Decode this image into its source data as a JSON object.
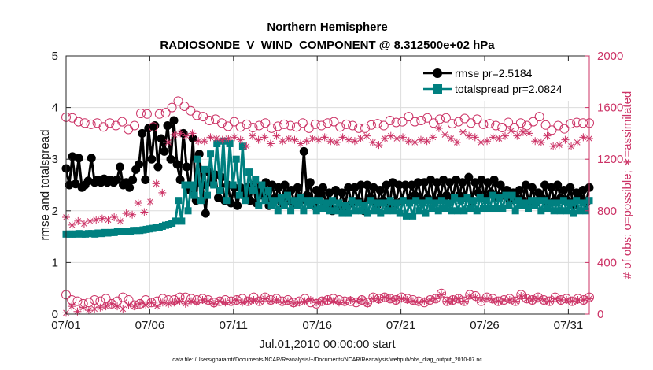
{
  "chart_data": {
    "type": "line",
    "title": "Northern Hemisphere",
    "subtitle": "RADIOSONDE_V_WIND_COMPONENT @ 8.312500e+02 hPa",
    "xlabel": "Jul.01,2010 00:00:00 start",
    "ylabel": "rmse and totalspread",
    "y2label": "# of obs: o=possible; ∗=assimilated",
    "footnote": "data file: /Users/gharamti/Documents/NCAR/Reanalysis/~/Documents/NCAR/Reanalysis/webpub/obs_diag_output_2010-07.nc",
    "xlim": [
      1,
      32.25
    ],
    "ylim": [
      0,
      5
    ],
    "y2lim": [
      0,
      2000
    ],
    "x_ticks": [
      1,
      6,
      11,
      16,
      21,
      26,
      31
    ],
    "x_tick_labels": [
      "07/01",
      "07/06",
      "07/11",
      "07/16",
      "07/21",
      "07/26",
      "07/31"
    ],
    "y_ticks": [
      "0",
      "1",
      "2",
      "3",
      "4",
      "5"
    ],
    "y2_ticks": [
      "0",
      "400",
      "800",
      "1200",
      "1600",
      "2000"
    ],
    "grid": true,
    "legend_location": "top-right",
    "series": [
      {
        "name": "rmse pr=2.5184",
        "axis": "left",
        "color": "#000000",
        "marker": "filled-circle",
        "values": [
          2.82,
          2.5,
          3.05,
          2.52,
          3.02,
          2.45,
          2.5,
          2.58,
          3.02,
          2.55,
          2.6,
          2.55,
          2.62,
          2.55,
          2.6,
          2.55,
          2.6,
          2.85,
          2.5,
          2.55,
          2.45,
          2.6,
          2.8,
          2.9,
          3.5,
          2.6,
          3.6,
          3.0,
          3.65,
          2.85,
          3.4,
          3.15,
          3.65,
          3.0,
          3.75,
          2.9,
          2.6,
          3.5,
          2.85,
          2.4,
          3.4,
          2.2,
          3.1,
          2.5,
          1.95,
          2.75,
          2.55,
          2.7,
          2.25,
          2.65,
          2.2,
          2.5,
          2.15,
          2.45,
          2.1,
          2.45,
          2.3,
          2.45,
          2.2,
          2.5,
          2.15,
          2.45,
          2.3,
          2.55,
          2.1,
          2.5,
          2.25,
          2.45,
          2.15,
          2.5,
          2.2,
          2.4,
          2.15,
          2.45,
          2.2,
          3.15,
          2.3,
          2.55,
          2.1,
          2.4,
          2.3,
          2.45,
          2.1,
          2.35,
          2.0,
          2.4,
          2.05,
          2.35,
          2.1,
          2.45,
          2.15,
          2.45,
          2.2,
          2.5,
          2.0,
          2.5,
          2.25,
          2.45,
          2.1,
          2.4,
          2.2,
          2.5,
          2.1,
          2.55,
          2.15,
          2.5,
          2.2,
          2.5,
          2.2,
          2.5,
          2.3,
          2.55,
          2.2,
          2.55,
          2.25,
          2.6,
          2.2,
          2.55,
          2.25,
          2.6,
          2.3,
          2.55,
          2.25,
          2.6,
          2.3,
          2.55,
          2.25,
          2.65,
          2.2,
          2.55,
          2.35,
          2.6,
          2.25,
          2.55,
          2.35,
          2.6,
          2.25,
          2.5,
          2.3,
          2.4,
          2.2,
          2.35,
          2.25,
          2.4,
          2.2,
          2.5,
          2.1,
          2.45,
          2.15,
          2.35,
          2.25,
          2.5,
          2.15,
          2.45,
          2.2,
          2.5,
          2.25,
          2.4,
          2.2,
          2.45,
          2.1,
          2.35,
          2.25,
          2.4,
          2.15,
          2.45
        ]
      },
      {
        "name": "totalspread pr=2.0824",
        "axis": "left",
        "color": "#008080",
        "marker": "filled-square",
        "values": [
          1.55,
          1.55,
          1.55,
          1.55,
          1.56,
          1.55,
          1.55,
          1.56,
          1.56,
          1.55,
          1.57,
          1.56,
          1.58,
          1.57,
          1.58,
          1.58,
          1.6,
          1.6,
          1.6,
          1.6,
          1.6,
          1.62,
          1.62,
          1.62,
          1.63,
          1.64,
          1.65,
          1.66,
          1.67,
          1.68,
          1.7,
          1.72,
          1.73,
          1.76,
          1.8,
          2.2,
          1.8,
          2.5,
          2.0,
          2.5,
          2.3,
          3.0,
          2.2,
          2.8,
          2.3,
          3.1,
          2.5,
          3.3,
          2.4,
          3.35,
          2.2,
          3.3,
          2.5,
          3.0,
          2.3,
          3.25,
          2.2,
          2.75,
          2.4,
          2.6,
          2.1,
          2.5,
          2.2,
          2.4,
          2.1,
          2.2,
          2.0,
          2.25,
          2.1,
          2.3,
          2.0,
          2.2,
          2.1,
          2.25,
          2.0,
          2.2,
          2.1,
          2.2,
          2.0,
          2.2,
          2.05,
          2.15,
          2.0,
          2.2,
          2.0,
          2.15,
          1.95,
          2.1,
          1.95,
          2.2,
          2.0,
          2.15,
          2.0,
          2.1,
          1.95,
          2.2,
          2.0,
          2.15,
          1.95,
          2.15,
          2.0,
          2.2,
          2.0,
          2.15,
          1.95,
          2.2,
          1.9,
          2.15,
          1.9,
          2.2,
          2.0,
          2.15,
          1.95,
          2.2,
          2.05,
          2.15,
          2.0,
          2.2,
          2.05,
          2.15,
          2.0,
          2.25,
          2.0,
          2.2,
          2.0,
          2.25,
          2.05,
          2.2,
          2.0,
          2.25,
          2.05,
          2.2,
          2.05,
          2.3,
          2.05,
          2.25,
          2.05,
          2.3,
          2.1,
          2.3,
          2.0,
          2.2,
          2.1,
          2.15,
          2.05,
          2.2,
          2.1,
          2.2,
          2.0,
          2.2,
          2.05,
          2.15,
          2.0,
          2.15,
          2.0,
          2.2,
          2.0,
          2.15,
          1.95,
          2.2,
          2.0,
          2.15,
          2.0,
          2.2
        ]
      },
      {
        "name": "possible (upper)",
        "axis": "right",
        "color": "#cc3366",
        "marker": "open-circle",
        "values": [
          1525,
          1520,
          1490,
          1480,
          1470,
          1480,
          1450,
          1480,
          1460,
          1490,
          1430,
          1460,
          1555,
          1550,
          1450,
          1550,
          1560,
          1600,
          1650,
          1610,
          1575,
          1540,
          1530,
          1500,
          1510,
          1480,
          1455,
          1490,
          1450,
          1470,
          1445,
          1460,
          1480,
          1440,
          1455,
          1470,
          1460,
          1450,
          1480,
          1440,
          1470,
          1460,
          1480,
          1490,
          1450,
          1470,
          1460,
          1440,
          1440,
          1465,
          1475,
          1460,
          1500,
          1485,
          1490,
          1530,
          1490,
          1500,
          1520,
          1480,
          1510,
          1520,
          1475,
          1490,
          1515,
          1480,
          1510,
          1470,
          1475,
          1460,
          1445,
          1485,
          1445,
          1480,
          1460,
          1490,
          1530,
          1465,
          1425,
          1460,
          1435,
          1475,
          1485,
          1480,
          1480
        ]
      },
      {
        "name": "assimilated (upper)",
        "axis": "right",
        "color": "#cc3366",
        "marker": "asterisk",
        "values": [
          750,
          690,
          720,
          700,
          720,
          730,
          740,
          730,
          750,
          720,
          780,
          770,
          860,
          790,
          870,
          1010,
          940,
          1330,
          1390,
          1400,
          1380,
          1400,
          1340,
          1340,
          1370,
          1360,
          1350,
          1360,
          1370,
          1350,
          1300,
          1380,
          1350,
          1370,
          1320,
          1380,
          1340,
          1360,
          1350,
          1320,
          1340,
          1360,
          1350,
          1370,
          1340,
          1330,
          1370,
          1350,
          1340,
          1360,
          1380,
          1330,
          1310,
          1360,
          1380,
          1360,
          1370,
          1340,
          1330,
          1350,
          1340,
          1370,
          1440,
          1390,
          1360,
          1330,
          1410,
          1380,
          1370,
          1330,
          1340,
          1370,
          1360,
          1380,
          1420,
          1380,
          1410,
          1400,
          1340,
          1330,
          1380,
          1300,
          1310,
          1350,
          1300,
          1330,
          1370,
          1360
        ]
      },
      {
        "name": "possible (lower)",
        "axis": "right",
        "color": "#cc3366",
        "marker": "open-circle",
        "values": [
          150,
          110,
          100,
          80,
          90,
          110,
          100,
          120,
          80,
          100,
          130,
          110,
          70,
          80,
          110,
          90,
          100,
          120,
          110,
          110,
          130,
          130,
          120,
          110,
          120,
          110,
          90,
          100,
          110,
          100,
          110,
          120,
          100,
          130,
          100,
          130,
          110,
          120,
          100,
          110,
          90,
          100,
          120,
          90,
          80,
          100,
          110,
          120,
          110,
          100,
          100,
          90,
          110,
          90,
          130,
          120,
          130,
          120,
          110,
          130,
          120,
          110,
          100,
          90,
          110,
          120,
          160,
          100,
          110,
          120,
          100,
          150,
          140,
          100,
          130,
          120,
          100,
          110,
          120,
          100,
          150,
          120,
          110,
          130,
          110,
          100,
          130,
          110,
          120,
          100,
          120,
          110,
          130
        ]
      },
      {
        "name": "assimilated (lower)",
        "axis": "right",
        "color": "#cc3366",
        "marker": "asterisk",
        "values": [
          10,
          60,
          20,
          50,
          30,
          40,
          50,
          60,
          80,
          60,
          40,
          70,
          60,
          80,
          70,
          90,
          60,
          90,
          80,
          90,
          100,
          80,
          100,
          90,
          110,
          100,
          80,
          100,
          90,
          90,
          110,
          90,
          100,
          110,
          100,
          120,
          100,
          110,
          90,
          100,
          80,
          90,
          100,
          110,
          90,
          100,
          110,
          100,
          90,
          90,
          110,
          100,
          110,
          80,
          120,
          110,
          130,
          120,
          110,
          120,
          110,
          100,
          90,
          100,
          110,
          120,
          150,
          100,
          110,
          120,
          100,
          140,
          130,
          110,
          120,
          110,
          100,
          110,
          110,
          100,
          140,
          120,
          110,
          120,
          110,
          100,
          120,
          110,
          110,
          100,
          110,
          110,
          120
        ]
      }
    ]
  }
}
